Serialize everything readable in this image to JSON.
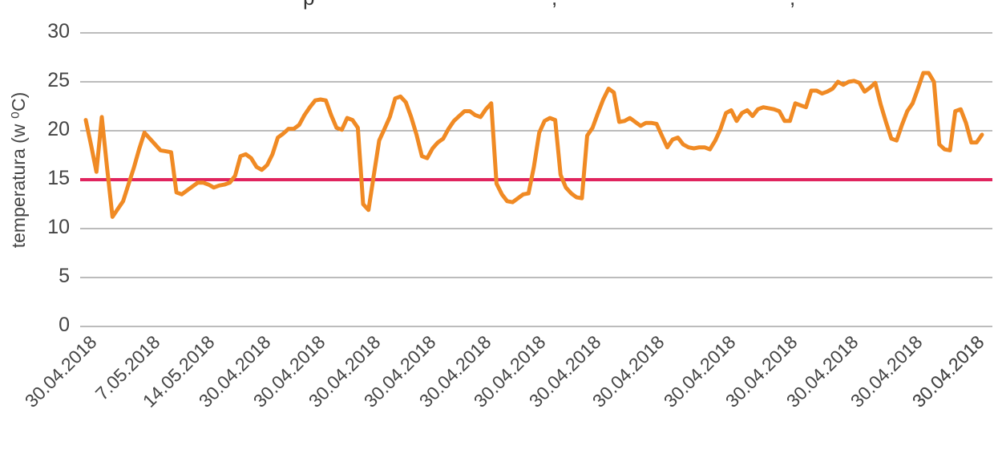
{
  "chart_data": {
    "type": "line",
    "title": "",
    "xlabel": "",
    "ylabel": "temperatura (w ⁰C)",
    "ylim": [
      0,
      30
    ],
    "yticks": [
      "0",
      "5",
      "10",
      "15",
      "20",
      "25",
      "30"
    ],
    "xtick_labels": [
      "30.04.2018",
      "7.05.2018",
      "14.05.2018",
      "30.04.2018",
      "30.04.2018",
      "30.04.2018",
      "30.04.2018",
      "30.04.2018",
      "30.04.2018",
      "30.04.2018",
      "30.04.2018",
      "30.04.2018",
      "30.04.2018",
      "30.04.2018",
      "30.04.2018",
      "30.04.2018",
      "30.04.2018"
    ],
    "grid": true,
    "colors": {
      "series": "#f08a24",
      "threshold": "#e0245e",
      "grid": "#7a7a7a",
      "text": "#444444"
    },
    "threshold": {
      "y": 15
    },
    "series": [
      {
        "values": [
          21.1,
          18.5,
          15.8,
          21.4,
          16.2,
          11.2,
          12.0,
          12.8,
          14.5,
          16.2,
          18.1,
          19.8,
          19.2,
          18.6,
          18.0,
          17.9,
          17.8,
          13.7,
          13.5,
          13.9,
          14.3,
          14.7,
          14.7,
          14.5,
          14.2,
          14.4,
          14.5,
          14.7,
          15.4,
          17.4,
          17.6,
          17.2,
          16.3,
          16.0,
          16.5,
          17.6,
          19.3,
          19.7,
          20.2,
          20.2,
          20.6,
          21.6,
          22.4,
          23.1,
          23.2,
          23.1,
          21.6,
          20.3,
          20.1,
          21.3,
          21.1,
          20.3,
          12.5,
          11.9,
          15.5,
          19.0,
          20.2,
          21.4,
          23.3,
          23.5,
          22.9,
          21.4,
          19.6,
          17.4,
          17.2,
          18.2,
          18.8,
          19.2,
          20.2,
          21.0,
          21.5,
          22.0,
          22.0,
          21.6,
          21.4,
          22.2,
          22.8,
          14.6,
          13.5,
          12.8,
          12.7,
          13.1,
          13.5,
          13.6,
          16.3,
          19.8,
          21.0,
          21.3,
          21.1,
          15.5,
          14.2,
          13.6,
          13.2,
          13.1,
          19.5,
          20.3,
          21.8,
          23.2,
          24.3,
          23.9,
          20.9,
          21.0,
          21.3,
          20.9,
          20.5,
          20.8,
          20.8,
          20.7,
          19.5,
          18.3,
          19.1,
          19.3,
          18.6,
          18.3,
          18.2,
          18.3,
          18.3,
          18.1,
          19.0,
          20.2,
          21.8,
          22.1,
          21.0,
          21.8,
          22.1,
          21.5,
          22.2,
          22.4,
          22.3,
          22.2,
          22.0,
          21.0,
          21.0,
          22.8,
          22.6,
          22.4,
          24.1,
          24.1,
          23.8,
          24.0,
          24.3,
          25.0,
          24.7,
          25.0,
          25.1,
          24.9,
          24.0,
          24.4,
          24.9,
          22.7,
          20.9,
          19.2,
          19.0,
          20.6,
          22.0,
          22.8,
          24.3,
          25.9,
          25.9,
          25.0,
          18.6,
          18.1,
          18.0,
          22.0,
          22.2,
          20.8,
          18.8,
          18.8,
          19.6
        ]
      }
    ]
  }
}
